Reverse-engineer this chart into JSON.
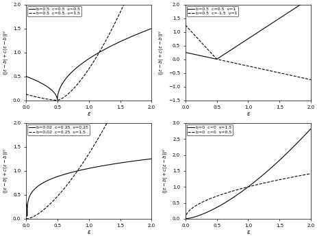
{
  "subplots": [
    {
      "curves": [
        {
          "b": 0.5,
          "c": 0.5,
          "nu": 0.5,
          "style": "solid",
          "label": "b=0.5  c=0.5  ν=0.5"
        },
        {
          "b": 0.5,
          "c": 0.5,
          "nu": 1.5,
          "style": "dashed",
          "label": "b=0.5  c=0.5  ν=1.5"
        }
      ],
      "ylim": [
        0.0,
        2.0
      ],
      "yticks": [
        0.0,
        0.5,
        1.0,
        1.5,
        2.0
      ]
    },
    {
      "curves": [
        {
          "b": 0.5,
          "c": 0.5,
          "nu": 1.0,
          "style": "solid",
          "label": "b=0.5  c=0.5  ν=1"
        },
        {
          "b": 0.5,
          "c": -1.5,
          "nu": 1.0,
          "style": "dashed",
          "label": "b=0.5  c=-1.5  ν=1"
        }
      ],
      "ylim": [
        -1.5,
        2.0
      ],
      "yticks": [
        -1.5,
        -1.0,
        -0.5,
        0.0,
        0.5,
        1.0,
        1.5,
        2.0
      ]
    },
    {
      "curves": [
        {
          "b": 0.02,
          "c": 0.25,
          "nu": 0.25,
          "style": "solid",
          "label": "b=0.02  c=0.25  ν=0.25"
        },
        {
          "b": 0.02,
          "c": 0.25,
          "nu": 1.5,
          "style": "dashed",
          "label": "b=0.02  c=0.25  ν=1.5"
        }
      ],
      "ylim": [
        0.0,
        2.0
      ],
      "yticks": [
        0.0,
        0.5,
        1.0,
        1.5,
        2.0
      ]
    },
    {
      "curves": [
        {
          "b": 0.0,
          "c": 0.0,
          "nu": 1.5,
          "style": "solid",
          "label": "b=0  c=0  ν=1.5"
        },
        {
          "b": 0.0,
          "c": 0.0,
          "nu": 0.5,
          "style": "dashed",
          "label": "b=0  c=0  ν=0.5"
        }
      ],
      "ylim": [
        0.0,
        3.0
      ],
      "yticks": [
        0.0,
        0.5,
        1.0,
        1.5,
        2.0,
        2.5,
        3.0
      ]
    }
  ],
  "xlim": [
    0.0,
    2.0
  ],
  "xticks": [
    0.0,
    0.5,
    1.0,
    1.5,
    2.0
  ],
  "xlabel": "ε",
  "ylabel": "((ε-b|+c(ε-b))⁻",
  "color": "black",
  "linewidth": 0.8,
  "tick_labelsize": 5,
  "legend_fontsize": 4.5,
  "xlabel_fontsize": 6,
  "ylabel_fontsize": 5
}
